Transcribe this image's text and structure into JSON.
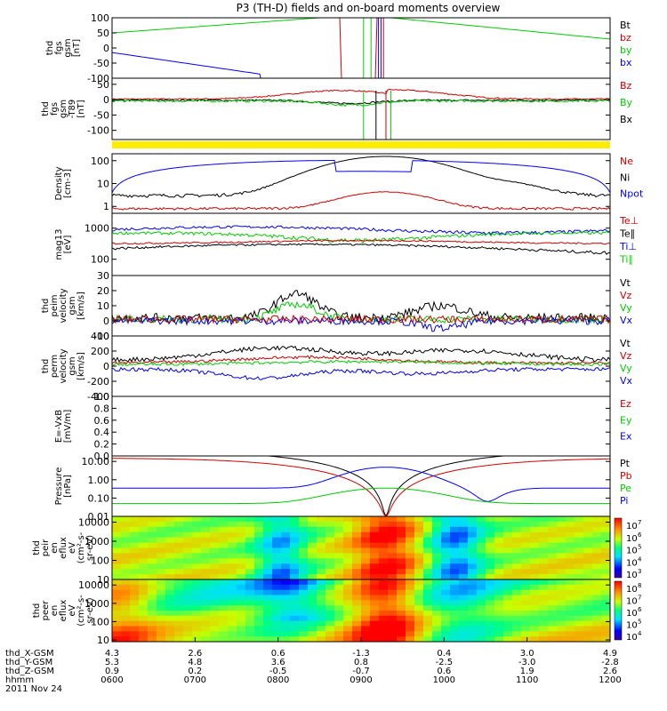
{
  "title": "P3 (TH-D) fields and on-board moments overview",
  "colors": {
    "black": "#000000",
    "red": "#d00000",
    "green": "#00cc00",
    "blue": "#0000ff",
    "yellow": "#ffee00"
  },
  "chart_data": [
    {
      "id": "fgs",
      "type": "line",
      "ylabel": "thd\nfgs\ngsm\n[nT]",
      "ylim": [
        -100,
        100
      ],
      "yticks": [
        "100",
        "50",
        "0",
        "-50",
        "-100"
      ],
      "legend": [
        {
          "name": "Bt",
          "color": "black"
        },
        {
          "name": "bz",
          "color": "red"
        },
        {
          "name": "by",
          "color": "green"
        },
        {
          "name": "bx",
          "color": "blue"
        }
      ]
    },
    {
      "id": "fgs-sub",
      "type": "line",
      "ylabel": "thd\nfgs\ngsm\n-T89\n[nT]",
      "ylim": [
        -130,
        70
      ],
      "yticks": [
        "50",
        "0",
        "-50",
        "-100"
      ],
      "legend": [
        {
          "name": "Bz",
          "color": "red"
        },
        {
          "name": "By",
          "color": "green"
        },
        {
          "name": "Bx",
          "color": "black"
        }
      ]
    },
    {
      "id": "density",
      "type": "line",
      "ylabel": "Density\n[cm-3]",
      "scale": "log",
      "ylim": [
        0.5,
        200
      ],
      "yticks": [
        "100",
        "10",
        "1"
      ],
      "legend": [
        {
          "name": "Ne",
          "color": "red"
        },
        {
          "name": "Ni",
          "color": "black"
        },
        {
          "name": "Npot",
          "color": "blue"
        }
      ]
    },
    {
      "id": "temperature",
      "type": "line",
      "ylabel": "mag13\n[eV]",
      "scale": "log",
      "ylim": [
        30,
        3000
      ],
      "yticks": [
        "1000",
        "100"
      ],
      "legend": [
        {
          "name": "Te⊥",
          "color": "red"
        },
        {
          "name": "Te∥",
          "color": "black"
        },
        {
          "name": "Ti⊥",
          "color": "blue"
        },
        {
          "name": "Ti∥",
          "color": "green"
        }
      ]
    },
    {
      "id": "velocity-eesa",
      "type": "line",
      "ylabel": "thd\npeim\nvelocity\ngsm\n[km/s]",
      "ylim": [
        -10,
        30
      ],
      "yticks": [
        "30",
        "20",
        "10",
        "0",
        "-10"
      ],
      "legend": [
        {
          "name": "Vt",
          "color": "black"
        },
        {
          "name": "Vz",
          "color": "red"
        },
        {
          "name": "Vy",
          "color": "green"
        },
        {
          "name": "Vx",
          "color": "blue"
        }
      ]
    },
    {
      "id": "velocity-iesa",
      "type": "line",
      "ylabel": "thd\nperm\nvelocity\ngsm\n[km/s]",
      "ylim": [
        -400,
        400
      ],
      "yticks": [
        "400",
        "200",
        "0",
        "-200",
        "-400"
      ],
      "legend": [
        {
          "name": "Vt",
          "color": "black"
        },
        {
          "name": "Vz",
          "color": "red"
        },
        {
          "name": "Vy",
          "color": "green"
        },
        {
          "name": "Vx",
          "color": "blue"
        }
      ]
    },
    {
      "id": "efield",
      "type": "line",
      "ylabel": "E=-VxB\n[mV/m]",
      "ylim": [
        0,
        1
      ],
      "yticks": [
        "1.0",
        "0.8",
        "0.6",
        "0.4",
        "0.2",
        "0.0"
      ],
      "legend": [
        {
          "name": "Ez",
          "color": "red"
        },
        {
          "name": "Ey",
          "color": "green"
        },
        {
          "name": "Ex",
          "color": "blue"
        }
      ]
    },
    {
      "id": "pressure",
      "type": "line",
      "ylabel": "Pressure\n[nPa]",
      "scale": "log",
      "ylim": [
        0.01,
        20
      ],
      "yticks": [
        "10.00",
        "1.00",
        "0.10",
        "0.01"
      ],
      "legend": [
        {
          "name": "Pt",
          "color": "black"
        },
        {
          "name": "Pb",
          "color": "red"
        },
        {
          "name": "Pe",
          "color": "green"
        },
        {
          "name": "Pi",
          "color": "blue"
        }
      ]
    },
    {
      "id": "ion-spectrogram",
      "type": "heatmap",
      "ylabel": "thd\npeir\nen\neflux\neV\n(cm²-s-\nsr-eV)",
      "scale": "log",
      "ylim": [
        10,
        20000
      ],
      "yticks": [
        "10000",
        "1000",
        "100",
        "10"
      ],
      "colorbar": {
        "ticks": [
          "10",
          "10",
          "10",
          "10",
          "10"
        ],
        "exps": [
          "7",
          "6",
          "5",
          "4",
          "3"
        ]
      }
    },
    {
      "id": "electron-spectrogram",
      "type": "heatmap",
      "ylabel": "thd\npeer\nen\neflux\neV\n(cm²-s-\nsr-eV)",
      "scale": "log",
      "ylim": [
        8,
        20000
      ],
      "yticks": [
        "10000",
        "1000",
        "100",
        "10"
      ],
      "colorbar": {
        "ticks": [
          "10",
          "10",
          "10",
          "10",
          "10"
        ],
        "exps": [
          "8",
          "7",
          "6",
          "5",
          "4"
        ]
      }
    }
  ],
  "x_axis": {
    "rows": [
      {
        "label": "thd_X-GSM",
        "values": [
          "4.3",
          "2.6",
          "0.6",
          "-1.3",
          "0.4",
          "3.0",
          "4.9"
        ]
      },
      {
        "label": "thd_Y-GSM",
        "values": [
          "5.3",
          "4.8",
          "3.6",
          "0.8",
          "-2.5",
          "-3.0",
          "-2.8"
        ]
      },
      {
        "label": "thd_Z-GSM",
        "values": [
          "0.9",
          "0.2",
          "-0.5",
          "-0.7",
          "0.6",
          "1.9",
          "2.6"
        ]
      },
      {
        "label": "hhmm",
        "values": [
          "0600",
          "0700",
          "0800",
          "0900",
          "1000",
          "1100",
          "1200"
        ]
      }
    ],
    "date": "2011 Nov 24"
  }
}
